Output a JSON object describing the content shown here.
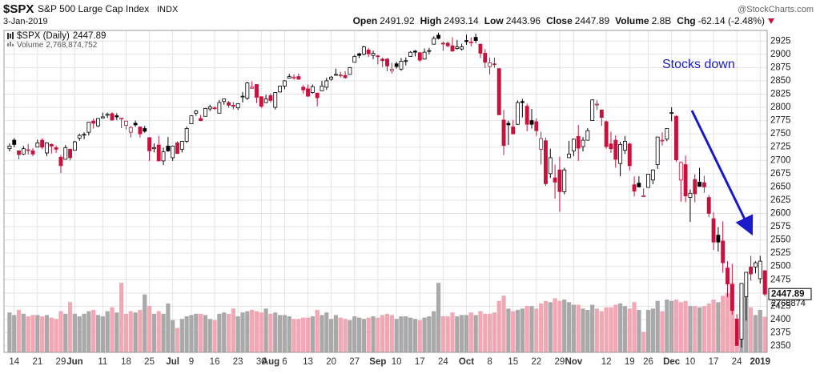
{
  "chart_data": {
    "type": "candlestick",
    "symbol": "$SPX",
    "name": "S&P 500 Large Cap Index",
    "exchange": "INDX",
    "date": "3-Jan-2019",
    "source": "@StockCharts.com",
    "header_labels": {
      "open": "Open",
      "high": "High",
      "low": "Low",
      "close": "Close",
      "volume": "Volume",
      "change": "Chg"
    },
    "volume_short": "2.8B",
    "change": "-62.14 (-2.48%)",
    "price_legend": "$SPX (Daily)",
    "volume_legend": "Volume",
    "volume_legend_value": "2,768,874,752",
    "volume_axis_label": "2768874",
    "annotation": "Stocks down",
    "open": [
      2722,
      2738,
      2718,
      2712,
      2720,
      2718,
      2725,
      2738,
      2714,
      2730,
      2724,
      2706,
      2702,
      2721,
      2719,
      2742,
      2749,
      2753,
      2774,
      2765,
      2780,
      2785,
      2788,
      2784,
      2778,
      2766,
      2753,
      2770,
      2763,
      2760,
      2743,
      2722,
      2729,
      2699,
      2727,
      2705,
      2733,
      2721,
      2736,
      2769,
      2789,
      2779,
      2783,
      2797,
      2799,
      2789,
      2811,
      2809,
      2804,
      2799,
      2820,
      2817,
      2836,
      2843,
      2820,
      2809,
      2822,
      2800,
      2829,
      2840,
      2855,
      2856,
      2858,
      2838,
      2835,
      2828,
      2827,
      2831,
      2838,
      2853,
      2861,
      2860,
      2860,
      2862,
      2885,
      2901,
      2900,
      2908,
      2898,
      2897,
      2891,
      2891,
      2869,
      2882,
      2872,
      2888,
      2896,
      2906,
      2903,
      2891,
      2906,
      2919,
      2936,
      2921,
      2921,
      2916,
      2911,
      2910,
      2926,
      2923,
      2932,
      2919,
      2902,
      2877,
      2882,
      2873,
      2776,
      2770,
      2763,
      2768,
      2811,
      2802,
      2775,
      2773,
      2721,
      2737,
      2675,
      2667,
      2682,
      2641,
      2705,
      2718,
      2745,
      2726,
      2738,
      2775,
      2806,
      2795,
      2773,
      2731,
      2738,
      2694,
      2719,
      2731,
      2654,
      2657,
      2633,
      2649,
      2663,
      2692,
      2737,
      2740,
      2790,
      2783,
      2663,
      2692,
      2630,
      2664,
      2659,
      2658,
      2630,
      2590,
      2559,
      2548,
      2497,
      2466,
      2401,
      2363,
      2443,
      2499,
      2499,
      2477,
      2491.92
    ],
    "high": [
      2732,
      2742,
      2719,
      2727,
      2731,
      2723,
      2739,
      2742,
      2734,
      2732,
      2728,
      2710,
      2729,
      2722,
      2737,
      2750,
      2753,
      2772,
      2779,
      2779,
      2790,
      2790,
      2791,
      2789,
      2780,
      2775,
      2765,
      2775,
      2764,
      2765,
      2743,
      2732,
      2746,
      2724,
      2744,
      2728,
      2736,
      2737,
      2764,
      2785,
      2795,
      2786,
      2799,
      2805,
      2802,
      2814,
      2816,
      2812,
      2810,
      2808,
      2829,
      2848,
      2849,
      2843,
      2821,
      2824,
      2826,
      2829,
      2841,
      2851,
      2863,
      2862,
      2864,
      2842,
      2843,
      2843,
      2827,
      2850,
      2856,
      2859,
      2873,
      2867,
      2868,
      2876,
      2899,
      2903,
      2916,
      2912,
      2907,
      2899,
      2894,
      2893,
      2884,
      2886,
      2893,
      2894,
      2906,
      2908,
      2904,
      2911,
      2912,
      2934,
      2941,
      2924,
      2924,
      2932,
      2927,
      2920,
      2937,
      2932,
      2939,
      2920,
      2910,
      2894,
      2894,
      2874,
      2795,
      2775,
      2776,
      2813,
      2816,
      2807,
      2797,
      2779,
      2754,
      2743,
      2722,
      2692,
      2707,
      2686,
      2737,
      2741,
      2767,
      2744,
      2761,
      2815,
      2814,
      2795,
      2775,
      2754,
      2747,
      2735,
      2746,
      2733,
      2670,
      2670,
      2647,
      2674,
      2683,
      2744,
      2753,
      2760,
      2800,
      2785,
      2698,
      2709,
      2645,
      2674,
      2686,
      2671,
      2635,
      2602,
      2574,
      2585,
      2510,
      2505,
      2410,
      2468,
      2489,
      2520,
      2510,
      2520,
      2493.14
    ],
    "low": [
      2717,
      2725,
      2702,
      2710,
      2711,
      2708,
      2725,
      2721,
      2708,
      2713,
      2714,
      2676,
      2702,
      2700,
      2719,
      2737,
      2740,
      2747,
      2760,
      2763,
      2780,
      2780,
      2775,
      2776,
      2761,
      2758,
      2743,
      2763,
      2743,
      2752,
      2699,
      2715,
      2699,
      2691,
      2716,
      2699,
      2712,
      2715,
      2733,
      2769,
      2784,
      2774,
      2783,
      2793,
      2795,
      2789,
      2805,
      2799,
      2796,
      2795,
      2809,
      2814,
      2835,
      2808,
      2799,
      2808,
      2809,
      2796,
      2828,
      2834,
      2855,
      2852,
      2852,
      2826,
      2820,
      2826,
      2802,
      2831,
      2833,
      2850,
      2861,
      2856,
      2854,
      2862,
      2885,
      2893,
      2898,
      2895,
      2891,
      2881,
      2876,
      2868,
      2864,
      2873,
      2869,
      2879,
      2896,
      2896,
      2886,
      2890,
      2900,
      2919,
      2928,
      2907,
      2913,
      2905,
      2909,
      2907,
      2918,
      2915,
      2921,
      2893,
      2874,
      2862,
      2875,
      2785,
      2710,
      2729,
      2749,
      2767,
      2781,
      2755,
      2760,
      2746,
      2692,
      2652,
      2667,
      2628,
      2603,
      2636,
      2705,
      2708,
      2699,
      2717,
      2738,
      2775,
      2795,
      2765,
      2722,
      2714,
      2686,
      2670,
      2712,
      2681,
      2632,
      2649,
      2631,
      2649,
      2655,
      2684,
      2728,
      2736,
      2774,
      2697,
      2622,
      2621,
      2584,
      2621,
      2650,
      2639,
      2593,
      2531,
      2528,
      2488,
      2442,
      2409,
      2351,
      2347,
      2398,
      2473,
      2487,
      2468,
      2443.96
    ],
    "close": [
      2727,
      2730,
      2711,
      2722,
      2720,
      2712,
      2733,
      2725,
      2733,
      2727,
      2721,
      2690,
      2724,
      2705,
      2735,
      2747,
      2749,
      2772,
      2770,
      2779,
      2782,
      2787,
      2776,
      2782,
      2780,
      2774,
      2762,
      2767,
      2750,
      2755,
      2718,
      2724,
      2699,
      2716,
      2718,
      2727,
      2713,
      2736,
      2760,
      2784,
      2793,
      2775,
      2798,
      2801,
      2798,
      2809,
      2816,
      2804,
      2802,
      2807,
      2821,
      2846,
      2838,
      2819,
      2802,
      2816,
      2813,
      2828,
      2840,
      2850,
      2858,
      2857,
      2853,
      2833,
      2821,
      2839,
      2818,
      2840,
      2850,
      2857,
      2862,
      2861,
      2856,
      2875,
      2896,
      2898,
      2914,
      2901,
      2902,
      2896,
      2888,
      2878,
      2872,
      2877,
      2887,
      2888,
      2904,
      2904,
      2889,
      2904,
      2907,
      2930,
      2930,
      2920,
      2916,
      2906,
      2914,
      2914,
      2924,
      2923,
      2926,
      2902,
      2885,
      2884,
      2881,
      2786,
      2728,
      2767,
      2750,
      2809,
      2809,
      2768,
      2768,
      2756,
      2741,
      2656,
      2705,
      2659,
      2641,
      2682,
      2712,
      2740,
      2723,
      2738,
      2756,
      2814,
      2806,
      2781,
      2726,
      2722,
      2702,
      2730,
      2736,
      2690,
      2642,
      2650,
      2633,
      2674,
      2682,
      2744,
      2738,
      2760,
      2790,
      2701,
      2696,
      2633,
      2638,
      2637,
      2651,
      2650,
      2600,
      2546,
      2546,
      2507,
      2467,
      2417,
      2351,
      2468,
      2489,
      2486,
      2507,
      2510,
      2447.89
    ],
    "volume": [
      3.1,
      2.9,
      3.3,
      3.0,
      2.8,
      2.9,
      2.9,
      2.8,
      2.9,
      2.7,
      2.6,
      3.2,
      3.0,
      3.9,
      3.0,
      2.8,
      3.0,
      3.2,
      3.3,
      2.9,
      2.8,
      3.2,
      3.5,
      3.1,
      5.4,
      3.0,
      3.2,
      3.1,
      3.3,
      4.5,
      3.6,
      3.0,
      3.2,
      3.0,
      3.8,
      2.5,
      1.9,
      2.6,
      2.8,
      2.9,
      3.0,
      3.0,
      2.9,
      2.6,
      2.5,
      3.0,
      3.1,
      3.0,
      3.4,
      2.8,
      3.1,
      3.2,
      3.3,
      3.2,
      3.1,
      3.4,
      3.0,
      3.1,
      2.9,
      2.9,
      2.8,
      2.6,
      2.6,
      2.7,
      2.7,
      2.8,
      3.3,
      2.9,
      3.1,
      2.6,
      2.9,
      2.7,
      2.6,
      2.5,
      2.8,
      2.7,
      2.6,
      2.7,
      2.8,
      2.7,
      2.9,
      3.0,
      2.9,
      2.6,
      2.8,
      2.8,
      2.7,
      2.6,
      2.5,
      2.7,
      2.8,
      3.2,
      5.4,
      2.8,
      2.8,
      3.1,
      2.8,
      2.9,
      2.9,
      3.1,
      2.9,
      3.2,
      3.0,
      3.0,
      3.1,
      4.0,
      4.4,
      3.4,
      3.2,
      3.3,
      3.4,
      3.6,
      3.6,
      3.4,
      3.8,
      4.0,
      3.9,
      4.2,
      4.0,
      4.1,
      3.9,
      3.7,
      3.7,
      3.4,
      3.3,
      3.7,
      3.4,
      3.2,
      3.5,
      3.5,
      3.7,
      3.8,
      3.6,
      3.4,
      3.9,
      3.3,
      1.6,
      3.3,
      3.4,
      4.0,
      3.2,
      4.1,
      4.0,
      4.1,
      3.9,
      4.0,
      3.6,
      3.6,
      3.5,
      3.6,
      3.8,
      4.1,
      3.9,
      4.4,
      4.6,
      5.4,
      2.1,
      4.2,
      4.3,
      3.5,
      2.9,
      3.3,
      2.768874752
    ],
    "ylim": [
      2338,
      2945
    ],
    "yticks": [
      2350,
      2375,
      2400,
      2425,
      2450,
      2475,
      2500,
      2525,
      2550,
      2575,
      2600,
      2625,
      2650,
      2675,
      2700,
      2725,
      2750,
      2775,
      2800,
      2825,
      2850,
      2875,
      2900,
      2925
    ],
    "vlim": [
      0,
      25
    ],
    "xticks": [
      {
        "value": 1,
        "label": "14"
      },
      {
        "value": 6,
        "label": "21"
      },
      {
        "value": 11,
        "label": "29"
      },
      {
        "value": 14,
        "label": "Jun"
      },
      {
        "value": 20,
        "label": "11"
      },
      {
        "value": 25,
        "label": "18"
      },
      {
        "value": 30,
        "label": "25"
      },
      {
        "value": 35,
        "label": "Jul"
      },
      {
        "value": 39,
        "label": "9"
      },
      {
        "value": 44,
        "label": "16"
      },
      {
        "value": 49,
        "label": "23"
      },
      {
        "value": 54,
        "label": "30"
      },
      {
        "value": 56,
        "label": "Aug"
      },
      {
        "value": 59,
        "label": "6"
      },
      {
        "value": 64,
        "label": "13"
      },
      {
        "value": 69,
        "label": "20"
      },
      {
        "value": 74,
        "label": "27"
      },
      {
        "value": 79,
        "label": "Sep"
      },
      {
        "value": 83,
        "label": "10"
      },
      {
        "value": 88,
        "label": "17"
      },
      {
        "value": 93,
        "label": "24"
      },
      {
        "value": 98,
        "label": "Oct"
      },
      {
        "value": 103,
        "label": "8"
      },
      {
        "value": 108,
        "label": "15"
      },
      {
        "value": 113,
        "label": "22"
      },
      {
        "value": 118,
        "label": "29"
      },
      {
        "value": 121,
        "label": "Nov"
      },
      {
        "value": 128,
        "label": "12"
      },
      {
        "value": 133,
        "label": "19"
      },
      {
        "value": 137,
        "label": "26"
      },
      {
        "value": 142,
        "label": "Dec"
      },
      {
        "value": 146,
        "label": "10"
      },
      {
        "value": 151,
        "label": "17"
      },
      {
        "value": 156,
        "label": "24"
      },
      {
        "value": 161,
        "label": "2019"
      }
    ],
    "grid": true,
    "up_color": "#000000",
    "down_color": "#c8113c",
    "volume_up_color": "#a9a9a9",
    "volume_down_color": "#f2a7b5"
  }
}
